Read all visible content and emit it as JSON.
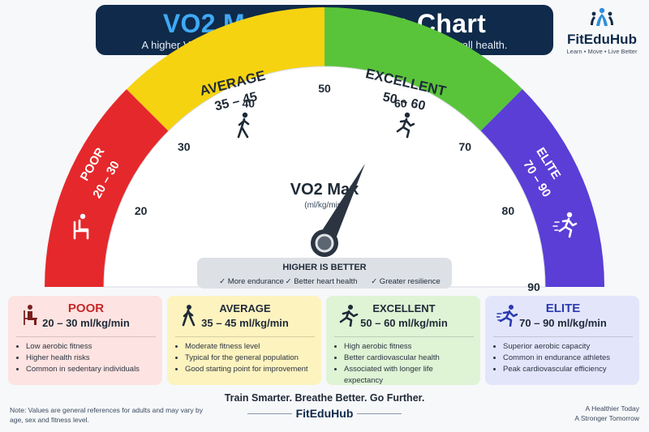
{
  "header": {
    "title_accent": "VO2 Max",
    "title_rest": " Reference Chart",
    "subtitle": "A higher VO2 max means better aerobic fitness, endurance and overall health."
  },
  "logo": {
    "name": "FitEduHub",
    "tagline": "Learn • Move • Live Better"
  },
  "gauge": {
    "center_label": "VO2 Max",
    "center_unit": "(ml/kg/min)",
    "needle_value": 62,
    "scale_min": 10,
    "scale_max": 90,
    "ticks": [
      "20",
      "30",
      "40",
      "50",
      "60",
      "70",
      "80",
      "90"
    ],
    "zones": [
      {
        "name": "POOR",
        "range": "20 – 30",
        "color": "#e5282b",
        "icon": "sitting-person-icon"
      },
      {
        "name": "AVERAGE",
        "range": "35 – 45",
        "color": "#f6d310",
        "icon": "walking-person-icon"
      },
      {
        "name": "EXCELLENT",
        "range": "50 – 60",
        "color": "#59c43a",
        "icon": "running-person-icon"
      },
      {
        "name": "ELITE",
        "range": "70 – 90",
        "color": "#5a3ed6",
        "icon": "sprinting-person-icon"
      }
    ],
    "higher_better": {
      "title": "HIGHER IS BETTER",
      "items": [
        "✓ More endurance",
        "✓ Better heart health",
        "✓ Greater resilience"
      ]
    }
  },
  "cards": [
    {
      "title": "POOR",
      "range": "20 – 30 ml/kg/min",
      "bullets": [
        "Low aerobic fitness",
        "Higher health risks",
        "Common in sedentary individuals"
      ]
    },
    {
      "title": "AVERAGE",
      "range": "35 – 45 ml/kg/min",
      "bullets": [
        "Moderate fitness level",
        "Typical for the general population",
        "Good starting point for improvement"
      ]
    },
    {
      "title": "EXCELLENT",
      "range": "50 – 60 ml/kg/min",
      "bullets": [
        "High aerobic fitness",
        "Better cardiovascular health",
        "Associated with longer life expectancy"
      ]
    },
    {
      "title": "ELITE",
      "range": "70 – 90 ml/kg/min",
      "bullets": [
        "Superior aerobic capacity",
        "Common in endurance athletes",
        "Peak cardiovascular efficiency"
      ]
    }
  ],
  "footer": {
    "tagline": "Train Smarter. Breathe Better. Go Further.",
    "brand": "FitEduHub",
    "note": "Note: Values are general references for adults and may vary by age, sex and fitness level.",
    "motto_1": "A Healthier Today",
    "motto_2": "A Stronger Tomorrow"
  },
  "colors": {
    "navy": "#0f2a4a",
    "accent_blue": "#3fa9f5",
    "poor_red": "#e5282b",
    "average_yellow": "#f6d310",
    "excellent_green": "#59c43a",
    "elite_purple": "#5a3ed6"
  }
}
